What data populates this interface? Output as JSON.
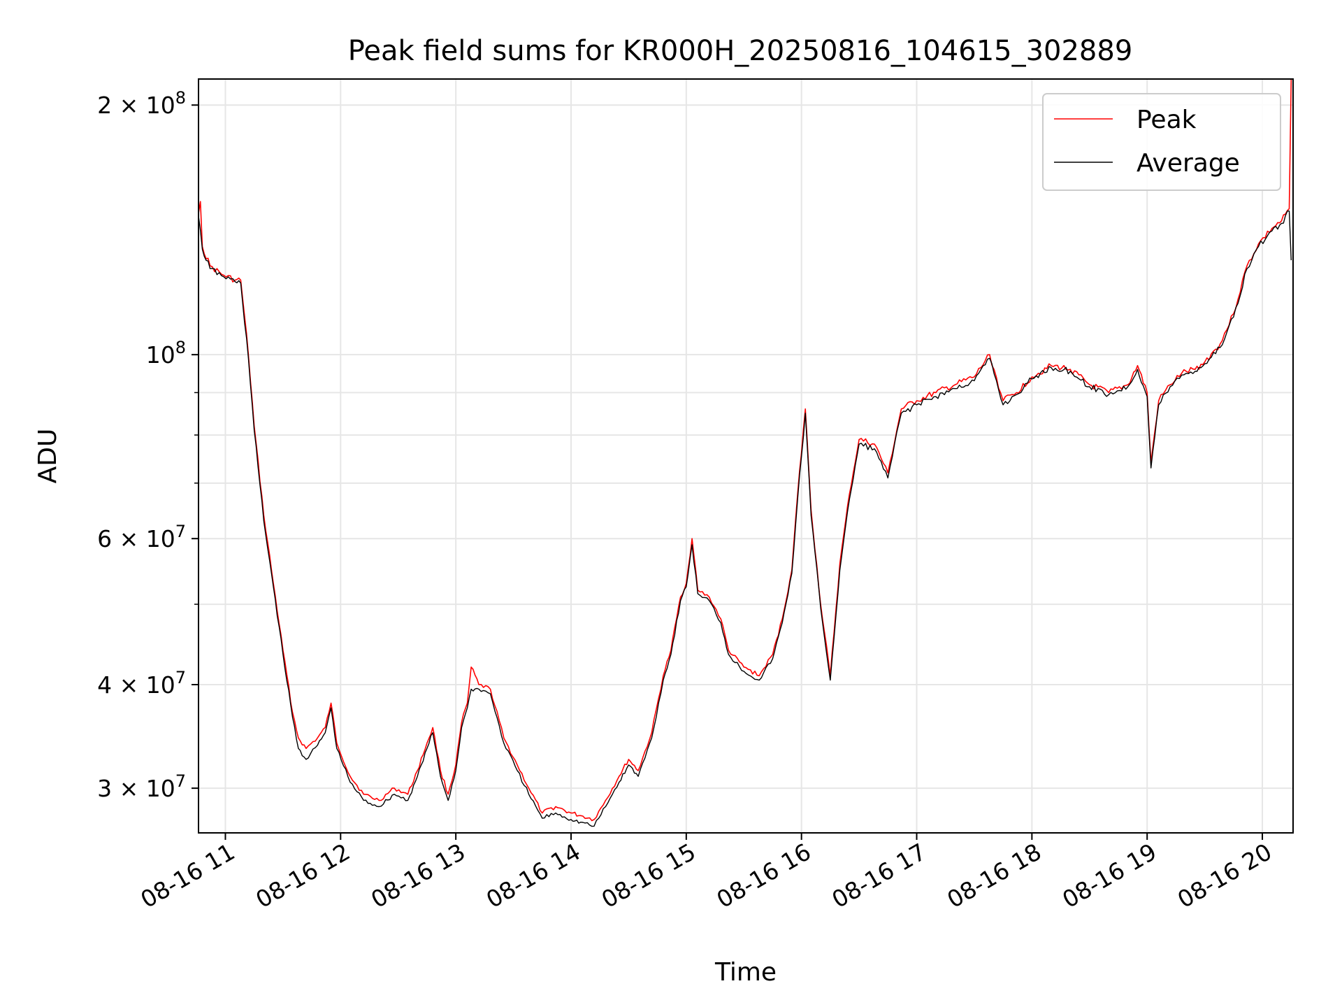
{
  "chart_data": {
    "type": "line",
    "title": "Peak field sums for KR000H_20250816_104615_302889",
    "xlabel": "Time",
    "ylabel": "ADU",
    "y_scale": "log",
    "ylim": [
      26500000,
      215000000
    ],
    "xlim": [
      "08-16 10:46",
      "08-16 20:16"
    ],
    "x_ticks": [
      {
        "value": "08-16 11:00",
        "label": "08-16 11"
      },
      {
        "value": "08-16 12:00",
        "label": "08-16 12"
      },
      {
        "value": "08-16 13:00",
        "label": "08-16 13"
      },
      {
        "value": "08-16 14:00",
        "label": "08-16 14"
      },
      {
        "value": "08-16 15:00",
        "label": "08-16 15"
      },
      {
        "value": "08-16 16:00",
        "label": "08-16 16"
      },
      {
        "value": "08-16 17:00",
        "label": "08-16 17"
      },
      {
        "value": "08-16 18:00",
        "label": "08-16 18"
      },
      {
        "value": "08-16 19:00",
        "label": "08-16 19"
      },
      {
        "value": "08-16 20:00",
        "label": "08-16 20"
      }
    ],
    "y_ticks": [
      {
        "value": 30000000,
        "mantissa": "3",
        "exp": "7"
      },
      {
        "value": 40000000,
        "mantissa": "4",
        "exp": "7"
      },
      {
        "value": 60000000,
        "mantissa": "6",
        "exp": "7"
      },
      {
        "value": 100000000,
        "mantissa": "",
        "exp": "8"
      },
      {
        "value": 200000000,
        "mantissa": "2",
        "exp": "8"
      }
    ],
    "y_minor_ticks": [
      50000000,
      70000000,
      80000000,
      90000000
    ],
    "grid": true,
    "legend_position": "top-right",
    "x_units": "time (08-16 HH:MM)",
    "y_units": "ADU",
    "series": [
      {
        "name": "Peak",
        "color": "#ff0000",
        "points": [
          [
            "10:46",
            148000000
          ],
          [
            "10:47",
            153000000
          ],
          [
            "10:48",
            135000000
          ],
          [
            "10:52",
            128000000
          ],
          [
            "10:58",
            125000000
          ],
          [
            "11:05",
            123000000
          ],
          [
            "11:08",
            123000000
          ],
          [
            "11:12",
            100000000
          ],
          [
            "11:15",
            82000000
          ],
          [
            "11:20",
            64000000
          ],
          [
            "11:25",
            53000000
          ],
          [
            "11:30",
            44000000
          ],
          [
            "11:35",
            37000000
          ],
          [
            "11:38",
            34500000
          ],
          [
            "11:42",
            33500000
          ],
          [
            "11:48",
            34500000
          ],
          [
            "11:52",
            35500000
          ],
          [
            "11:55",
            38000000
          ],
          [
            "11:58",
            34000000
          ],
          [
            "12:05",
            31000000
          ],
          [
            "12:12",
            29500000
          ],
          [
            "12:20",
            29000000
          ],
          [
            "12:28",
            30000000
          ],
          [
            "12:35",
            29500000
          ],
          [
            "12:40",
            31500000
          ],
          [
            "12:45",
            34000000
          ],
          [
            "12:48",
            35500000
          ],
          [
            "12:52",
            31500000
          ],
          [
            "12:56",
            29500000
          ],
          [
            "13:00",
            32000000
          ],
          [
            "13:03",
            36000000
          ],
          [
            "13:06",
            38000000
          ],
          [
            "13:08",
            42000000
          ],
          [
            "13:12",
            40000000
          ],
          [
            "13:18",
            39500000
          ],
          [
            "13:25",
            34500000
          ],
          [
            "13:32",
            32000000
          ],
          [
            "13:38",
            30000000
          ],
          [
            "13:45",
            28000000
          ],
          [
            "13:52",
            28500000
          ],
          [
            "14:00",
            28000000
          ],
          [
            "14:05",
            27800000
          ],
          [
            "14:12",
            27500000
          ],
          [
            "14:18",
            29000000
          ],
          [
            "14:25",
            31000000
          ],
          [
            "14:30",
            32500000
          ],
          [
            "14:35",
            31500000
          ],
          [
            "14:42",
            35000000
          ],
          [
            "14:48",
            41000000
          ],
          [
            "14:52",
            44000000
          ],
          [
            "14:57",
            51000000
          ],
          [
            "15:00",
            53000000
          ],
          [
            "15:03",
            60000000
          ],
          [
            "15:06",
            52000000
          ],
          [
            "15:12",
            51000000
          ],
          [
            "15:18",
            48000000
          ],
          [
            "15:22",
            44000000
          ],
          [
            "15:30",
            42000000
          ],
          [
            "15:38",
            41000000
          ],
          [
            "15:45",
            43500000
          ],
          [
            "15:50",
            48000000
          ],
          [
            "15:55",
            55000000
          ],
          [
            "15:58",
            68000000
          ],
          [
            "16:02",
            86000000
          ],
          [
            "16:05",
            65000000
          ],
          [
            "16:10",
            50000000
          ],
          [
            "16:15",
            41000000
          ],
          [
            "16:20",
            56000000
          ],
          [
            "16:25",
            68000000
          ],
          [
            "16:30",
            79000000
          ],
          [
            "16:38",
            78000000
          ],
          [
            "16:45",
            72000000
          ],
          [
            "16:52",
            86000000
          ],
          [
            "17:00",
            88000000
          ],
          [
            "17:10",
            90000000
          ],
          [
            "17:20",
            92000000
          ],
          [
            "17:30",
            94000000
          ],
          [
            "17:38",
            100000000
          ],
          [
            "17:45",
            88000000
          ],
          [
            "17:52",
            90000000
          ],
          [
            "18:00",
            94000000
          ],
          [
            "18:10",
            97000000
          ],
          [
            "18:20",
            96000000
          ],
          [
            "18:30",
            92000000
          ],
          [
            "18:40",
            90000000
          ],
          [
            "18:50",
            92000000
          ],
          [
            "18:55",
            97000000
          ],
          [
            "19:00",
            90000000
          ],
          [
            "19:02",
            74000000
          ],
          [
            "19:06",
            88000000
          ],
          [
            "19:12",
            92000000
          ],
          [
            "19:18",
            95000000
          ],
          [
            "19:25",
            96000000
          ],
          [
            "19:30",
            98000000
          ],
          [
            "19:38",
            103000000
          ],
          [
            "19:45",
            112000000
          ],
          [
            "19:52",
            128000000
          ],
          [
            "19:58",
            136000000
          ],
          [
            "20:05",
            142000000
          ],
          [
            "20:10",
            145000000
          ],
          [
            "20:14",
            150000000
          ],
          [
            "20:15",
            215000000
          ]
        ]
      },
      {
        "name": "Average",
        "color": "#000000",
        "points": [
          [
            "10:46",
            147000000
          ],
          [
            "10:48",
            134000000
          ],
          [
            "10:52",
            127000000
          ],
          [
            "10:58",
            124500000
          ],
          [
            "11:05",
            122500000
          ],
          [
            "11:08",
            122000000
          ],
          [
            "11:12",
            99000000
          ],
          [
            "11:15",
            81000000
          ],
          [
            "11:20",
            63000000
          ],
          [
            "11:25",
            52500000
          ],
          [
            "11:30",
            43500000
          ],
          [
            "11:35",
            36500000
          ],
          [
            "11:38",
            33500000
          ],
          [
            "11:42",
            32500000
          ],
          [
            "11:48",
            33800000
          ],
          [
            "11:52",
            35000000
          ],
          [
            "11:55",
            37500000
          ],
          [
            "11:58",
            33500000
          ],
          [
            "12:05",
            30500000
          ],
          [
            "12:12",
            29000000
          ],
          [
            "12:20",
            28500000
          ],
          [
            "12:28",
            29500000
          ],
          [
            "12:35",
            29000000
          ],
          [
            "12:40",
            31000000
          ],
          [
            "12:45",
            33500000
          ],
          [
            "12:48",
            35000000
          ],
          [
            "12:52",
            31000000
          ],
          [
            "12:56",
            29000000
          ],
          [
            "13:00",
            31500000
          ],
          [
            "13:03",
            35500000
          ],
          [
            "13:06",
            37500000
          ],
          [
            "13:08",
            39500000
          ],
          [
            "13:12",
            39500000
          ],
          [
            "13:18",
            39000000
          ],
          [
            "13:25",
            34000000
          ],
          [
            "13:32",
            31500000
          ],
          [
            "13:38",
            29500000
          ],
          [
            "13:45",
            27600000
          ],
          [
            "13:52",
            28000000
          ],
          [
            "14:00",
            27500000
          ],
          [
            "14:05",
            27300000
          ],
          [
            "14:12",
            27000000
          ],
          [
            "14:18",
            28500000
          ],
          [
            "14:25",
            30500000
          ],
          [
            "14:30",
            32000000
          ],
          [
            "14:35",
            31000000
          ],
          [
            "14:42",
            34500000
          ],
          [
            "14:48",
            40500000
          ],
          [
            "14:52",
            43500000
          ],
          [
            "14:57",
            50500000
          ],
          [
            "15:00",
            52500000
          ],
          [
            "15:03",
            59000000
          ],
          [
            "15:06",
            51500000
          ],
          [
            "15:12",
            50500000
          ],
          [
            "15:18",
            47500000
          ],
          [
            "15:22",
            43500000
          ],
          [
            "15:30",
            41500000
          ],
          [
            "15:38",
            40500000
          ],
          [
            "15:45",
            43000000
          ],
          [
            "15:50",
            47500000
          ],
          [
            "15:55",
            54500000
          ],
          [
            "15:58",
            67000000
          ],
          [
            "16:02",
            85000000
          ],
          [
            "16:05",
            64000000
          ],
          [
            "16:10",
            49500000
          ],
          [
            "16:15",
            40500000
          ],
          [
            "16:20",
            55000000
          ],
          [
            "16:25",
            67000000
          ],
          [
            "16:30",
            78000000
          ],
          [
            "16:38",
            77000000
          ],
          [
            "16:45",
            71000000
          ],
          [
            "16:52",
            85000000
          ],
          [
            "17:00",
            87000000
          ],
          [
            "17:10",
            89000000
          ],
          [
            "17:20",
            91000000
          ],
          [
            "17:30",
            93000000
          ],
          [
            "17:38",
            99000000
          ],
          [
            "17:45",
            87000000
          ],
          [
            "17:52",
            89500000
          ],
          [
            "18:00",
            93500000
          ],
          [
            "18:10",
            96500000
          ],
          [
            "18:20",
            95500000
          ],
          [
            "18:30",
            91500000
          ],
          [
            "18:40",
            89500000
          ],
          [
            "18:50",
            91500000
          ],
          [
            "18:55",
            96000000
          ],
          [
            "19:00",
            89000000
          ],
          [
            "19:02",
            73000000
          ],
          [
            "19:06",
            87000000
          ],
          [
            "19:12",
            91500000
          ],
          [
            "19:18",
            94500000
          ],
          [
            "19:25",
            95500000
          ],
          [
            "19:30",
            97500000
          ],
          [
            "19:38",
            102000000
          ],
          [
            "19:45",
            111000000
          ],
          [
            "19:52",
            127000000
          ],
          [
            "19:58",
            135000000
          ],
          [
            "20:05",
            141000000
          ],
          [
            "20:10",
            144000000
          ],
          [
            "20:14",
            149000000
          ],
          [
            "20:15",
            130000000
          ]
        ]
      }
    ]
  }
}
